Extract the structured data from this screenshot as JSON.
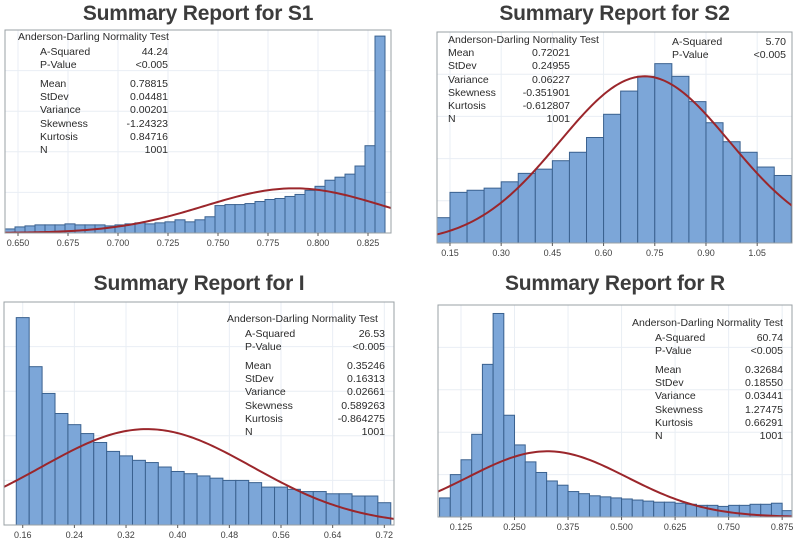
{
  "style_colors": {
    "bar_fill": "#7CA6D8",
    "bar_stroke": "#3A618F",
    "curve": "#9B262B",
    "frame": "#9AA0A4",
    "grid": "#E9EEF4",
    "tick": "#595959",
    "tick_label": "#404040",
    "title": "#3C3C3C",
    "stats_text": "#2B2B2B"
  },
  "chart_data": [
    {
      "type": "bar",
      "subtype": "histogram-with-normal-curve",
      "title": "Summary Report for S1",
      "xlabel": "",
      "ylabel": "",
      "grid": true,
      "xlim": [
        0.6435,
        0.8365
      ],
      "tick_values": [
        0.65,
        0.675,
        0.7,
        0.725,
        0.75,
        0.775,
        0.8,
        0.825
      ],
      "tick_labels": [
        "0.650",
        "0.675",
        "0.700",
        "0.725",
        "0.750",
        "0.775",
        "0.800",
        "0.825"
      ],
      "bin_start": 0.6435,
      "bin_width": 0.005,
      "bar_heights_pct": [
        2,
        3,
        3.5,
        4,
        4,
        4,
        4.5,
        4,
        4,
        4,
        3.5,
        4,
        4.5,
        5,
        4.5,
        5,
        5.5,
        6.5,
        5.5,
        6.5,
        8,
        13.5,
        14,
        14,
        14.5,
        15.5,
        16.5,
        17,
        18,
        19,
        21,
        23,
        26,
        27.5,
        29,
        33,
        43,
        97
      ],
      "normal_curve": {
        "mean": 0.78815,
        "stdev": 0.04481,
        "peak_pct": 22
      },
      "stats": {
        "heading": "Anderson-Darling Normality Test",
        "test_rows": [
          [
            "A-Squared",
            "44.24"
          ],
          [
            "P-Value",
            "<0.005"
          ]
        ],
        "moment_rows": [
          [
            "Mean",
            "0.78815"
          ],
          [
            "StDev",
            "0.04481"
          ],
          [
            "Variance",
            "0.00201"
          ],
          [
            "Skewness",
            "-1.24323"
          ],
          [
            "Kurtosis",
            "0.84716"
          ],
          [
            "N",
            "1001"
          ]
        ]
      }
    },
    {
      "type": "bar",
      "subtype": "histogram-with-normal-curve",
      "title": "Summary Report for S2",
      "xlabel": "",
      "ylabel": "",
      "grid": true,
      "xlim": [
        0.112,
        1.152
      ],
      "tick_values": [
        0.15,
        0.3,
        0.45,
        0.6,
        0.75,
        0.9,
        1.05
      ],
      "tick_labels": [
        "0.15",
        "0.30",
        "0.45",
        "0.60",
        "0.75",
        "0.90",
        "1.05"
      ],
      "bin_start": 0.1,
      "bin_width": 0.05,
      "bar_heights_pct": [
        12,
        24,
        25,
        26,
        29,
        33,
        35,
        39,
        43,
        50,
        61,
        72,
        79,
        85,
        79,
        67,
        57,
        48,
        43,
        36,
        32
      ],
      "normal_curve": {
        "mean": 0.72021,
        "stdev": 0.24955,
        "peak_pct": 79
      },
      "stats": {
        "heading": "Anderson-Darling Normality Test",
        "test_rows": [
          [
            "A-Squared",
            "5.70"
          ],
          [
            "P-Value",
            "<0.005"
          ]
        ],
        "moment_rows": [
          [
            "Mean",
            "0.72021"
          ],
          [
            "StDev",
            "0.24955"
          ],
          [
            "Variance",
            "0.06227"
          ],
          [
            "Skewness",
            "-0.351901"
          ],
          [
            "Kurtosis",
            "-0.612807"
          ],
          [
            "N",
            "1001"
          ]
        ]
      }
    },
    {
      "type": "bar",
      "subtype": "histogram-with-normal-curve",
      "title": "Summary Report for I",
      "xlabel": "",
      "ylabel": "",
      "grid": true,
      "xlim": [
        0.131,
        0.735
      ],
      "tick_values": [
        0.16,
        0.24,
        0.32,
        0.4,
        0.48,
        0.56,
        0.64,
        0.72
      ],
      "tick_labels": [
        "0.16",
        "0.24",
        "0.32",
        "0.40",
        "0.48",
        "0.56",
        "0.64",
        "0.72"
      ],
      "bin_start": 0.15,
      "bin_width": 0.02,
      "bar_heights_pct": [
        93,
        71,
        59,
        50,
        45,
        41,
        37,
        33,
        31,
        29,
        28,
        26,
        24,
        23,
        22,
        21,
        20,
        20,
        19,
        17,
        17,
        16,
        15,
        15,
        14,
        14,
        13,
        13,
        10
      ],
      "normal_curve": {
        "mean": 0.35246,
        "stdev": 0.16313,
        "peak_pct": 43
      },
      "stats": {
        "heading": "Anderson-Darling Normality Test",
        "test_rows": [
          [
            "A-Squared",
            "26.53"
          ],
          [
            "P-Value",
            "<0.005"
          ]
        ],
        "moment_rows": [
          [
            "Mean",
            "0.35246"
          ],
          [
            "StDev",
            "0.16313"
          ],
          [
            "Variance",
            "0.02661"
          ],
          [
            "Skewness",
            "0.589263"
          ],
          [
            "Kurtosis",
            "-0.864275"
          ],
          [
            "N",
            "1001"
          ]
        ]
      }
    },
    {
      "type": "bar",
      "subtype": "histogram-with-normal-curve",
      "title": "Summary Report for R",
      "xlabel": "",
      "ylabel": "",
      "grid": true,
      "xlim": [
        0.0713,
        0.898
      ],
      "tick_values": [
        0.125,
        0.25,
        0.375,
        0.5,
        0.625,
        0.75,
        0.875
      ],
      "tick_labels": [
        "0.125",
        "0.250",
        "0.375",
        "0.500",
        "0.625",
        "0.750",
        "0.875"
      ],
      "bin_start": 0.075,
      "bin_width": 0.025,
      "bar_heights_pct": [
        9,
        20,
        27,
        39,
        72,
        96,
        48,
        34,
        26,
        21,
        17,
        15,
        12,
        11,
        10,
        9.5,
        9,
        8.5,
        8,
        7.5,
        7,
        7,
        6.5,
        6,
        5.5,
        5.5,
        5,
        5.5,
        5.5,
        6,
        6,
        6.5,
        3
      ],
      "normal_curve": {
        "mean": 0.32684,
        "stdev": 0.1855,
        "peak_pct": 31
      },
      "stats": {
        "heading": "Anderson-Darling Normality Test",
        "test_rows": [
          [
            "A-Squared",
            "60.74"
          ],
          [
            "P-Value",
            "<0.005"
          ]
        ],
        "moment_rows": [
          [
            "Mean",
            "0.32684"
          ],
          [
            "StDev",
            "0.18550"
          ],
          [
            "Variance",
            "0.03441"
          ],
          [
            "Skewness",
            "1.27475"
          ],
          [
            "Kurtosis",
            "0.66291"
          ],
          [
            "N",
            "1001"
          ]
        ]
      }
    }
  ]
}
